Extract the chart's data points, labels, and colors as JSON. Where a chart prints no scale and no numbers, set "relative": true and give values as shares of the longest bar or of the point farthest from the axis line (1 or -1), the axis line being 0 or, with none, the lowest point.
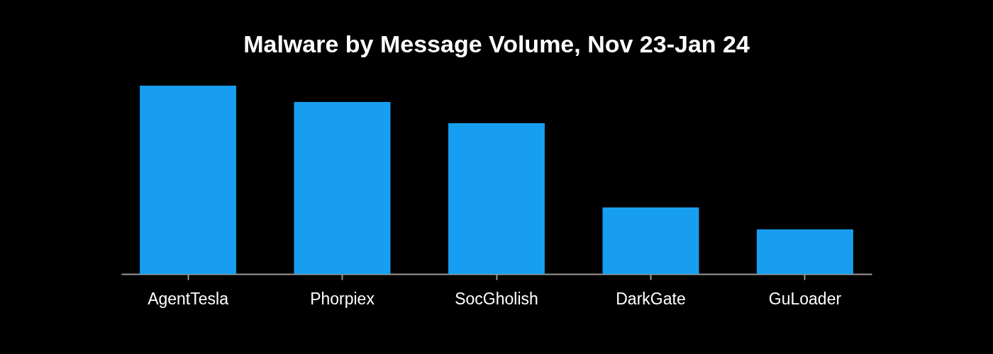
{
  "chart_data": {
    "type": "bar",
    "title": "Malware by Message Volume, Nov 23-Jan 24",
    "categories": [
      "AgentTesla",
      "Phorpiex",
      "SocGholish",
      "DarkGate",
      "GuLoader"
    ],
    "values": [
      1,
      0.914,
      0.801,
      0.353,
      0.237
    ],
    "color": "#179ef0",
    "relative": true
  }
}
